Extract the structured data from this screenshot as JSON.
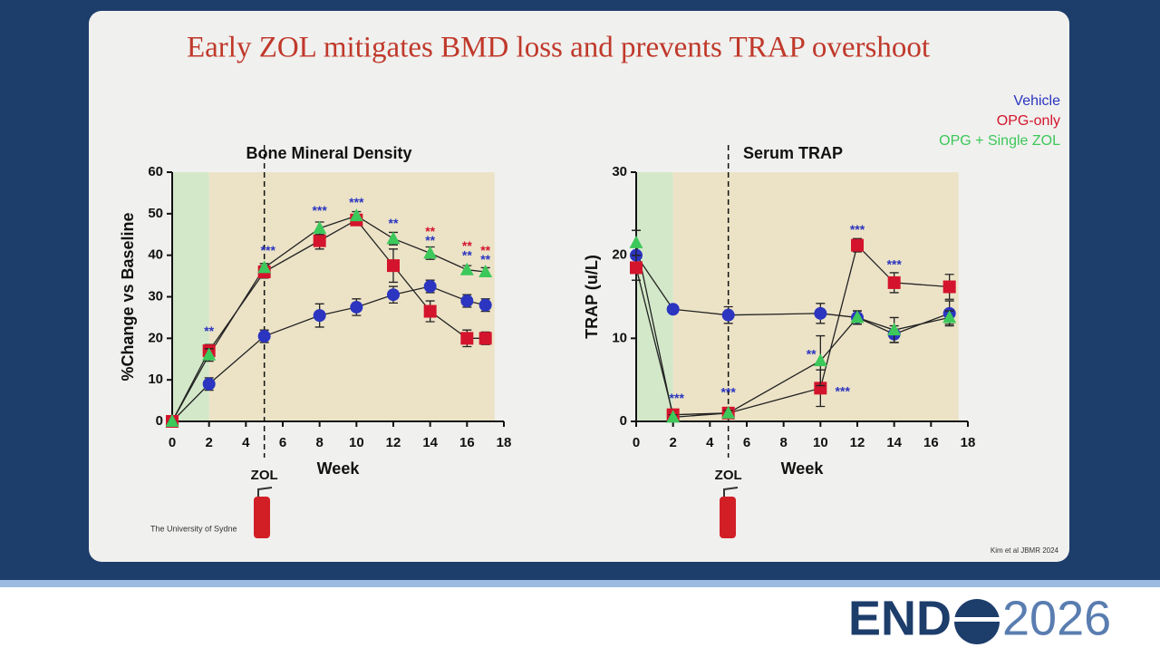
{
  "slide": {
    "title": "Early ZOL mitigates BMD loss and prevents TRAP overshoot",
    "affiliation": "The University of Sydne",
    "source": "Kim et al JBMR 2024",
    "logo_left": "END",
    "logo_right": "2026"
  },
  "chart_data": [
    {
      "type": "line",
      "title": "Bone Mineral Density",
      "x_label": "Week",
      "y_label": "%Change vs Baseline",
      "x": [
        0,
        2,
        5,
        8,
        10,
        12,
        14,
        16,
        17
      ],
      "xlim": [
        0,
        18
      ],
      "xticks": [
        0,
        2,
        4,
        6,
        8,
        10,
        12,
        14,
        16,
        18
      ],
      "ylim": [
        0,
        60
      ],
      "yticks": [
        0,
        10,
        20,
        30,
        40,
        50,
        60
      ],
      "shaded_regions": [
        {
          "x": [
            0,
            2
          ],
          "color": "#d3e8c9"
        },
        {
          "x": [
            2,
            17.5
          ],
          "color": "#ece3c7"
        }
      ],
      "marker_line": {
        "x": 5,
        "label": "ZOL"
      },
      "series": [
        {
          "name": "Vehicle",
          "color": "#2b35c0",
          "marker": "circle",
          "values": [
            0,
            9,
            20.5,
            25.5,
            27.5,
            30.5,
            32.5,
            29,
            28
          ],
          "errors": [
            0,
            1.5,
            1.5,
            2.8,
            2,
            2,
            1.5,
            1.5,
            1.5
          ]
        },
        {
          "name": "OPG-only",
          "color": "#d4142c",
          "marker": "square",
          "values": [
            0,
            17,
            36,
            43.5,
            48.5,
            37.5,
            26.5,
            20,
            20
          ],
          "errors": [
            0,
            1.5,
            1.5,
            2,
            1,
            4,
            2.5,
            2,
            1.5
          ]
        },
        {
          "name": "OPG + Single ZOL",
          "color": "#3cc85a",
          "marker": "triangle",
          "values": [
            0,
            16,
            37,
            46.5,
            49.5,
            44,
            40.5,
            36.5,
            36
          ],
          "errors": [
            0,
            1.5,
            1,
            1.5,
            1,
            1.5,
            1.5,
            1,
            1
          ]
        }
      ],
      "annotations": [
        {
          "text": "**",
          "x": 2,
          "y": 21.5,
          "color": "#2b35c0"
        },
        {
          "text": "***",
          "x": 5.2,
          "y": 41,
          "color": "#2b35c0"
        },
        {
          "text": "***",
          "x": 8,
          "y": 50.5,
          "color": "#2b35c0"
        },
        {
          "text": "***",
          "x": 10,
          "y": 52.5,
          "color": "#2b35c0"
        },
        {
          "text": "**",
          "x": 12,
          "y": 47.5,
          "color": "#2b35c0"
        },
        {
          "text": "**",
          "x": 14,
          "y": 45.5,
          "color": "#d4142c"
        },
        {
          "text": "**",
          "x": 14,
          "y": 43.3,
          "color": "#2b35c0"
        },
        {
          "text": "**",
          "x": 16,
          "y": 42,
          "color": "#d4142c"
        },
        {
          "text": "**",
          "x": 16,
          "y": 39.8,
          "color": "#2b35c0"
        },
        {
          "text": "**",
          "x": 17,
          "y": 41,
          "color": "#d4142c"
        },
        {
          "text": "**",
          "x": 17,
          "y": 38.8,
          "color": "#2b35c0"
        }
      ]
    },
    {
      "type": "line",
      "title": "Serum TRAP",
      "x_label": "Week",
      "y_label": "TRAP (u/L)",
      "x": [
        0,
        2,
        5,
        10,
        12,
        14,
        17
      ],
      "xlim": [
        0,
        18
      ],
      "xticks": [
        0,
        2,
        4,
        6,
        8,
        10,
        12,
        14,
        16,
        18
      ],
      "ylim": [
        0,
        30
      ],
      "yticks": [
        0,
        10,
        20,
        30
      ],
      "shaded_regions": [
        {
          "x": [
            0,
            2
          ],
          "color": "#d3e8c9"
        },
        {
          "x": [
            2,
            17.5
          ],
          "color": "#ece3c7"
        }
      ],
      "marker_line": {
        "x": 5,
        "label": "ZOL"
      },
      "series": [
        {
          "name": "Vehicle",
          "color": "#2b35c0",
          "marker": "circle",
          "values": [
            20,
            13.5,
            12.8,
            13,
            12.5,
            10.5,
            13
          ],
          "errors": [
            3,
            0.3,
            1,
            1.2,
            0.8,
            1,
            1.5
          ]
        },
        {
          "name": "OPG-only",
          "color": "#d4142c",
          "marker": "square",
          "values": [
            18.5,
            0.8,
            1,
            4,
            21.2,
            16.7,
            16.2
          ],
          "errors": [
            1.5,
            0.5,
            0.5,
            2.2,
            0.8,
            1.2,
            1.5
          ]
        },
        {
          "name": "OPG + Single ZOL",
          "color": "#3cc85a",
          "marker": "triangle",
          "values": [
            21.5,
            0.5,
            1,
            7.3,
            12.5,
            11,
            12.5
          ],
          "errors": [
            1.5,
            0.3,
            0.3,
            3,
            0.8,
            1.5,
            0.8
          ]
        }
      ],
      "annotations": [
        {
          "text": "***",
          "x": 2.2,
          "y": 2.7,
          "color": "#2b35c0"
        },
        {
          "text": "***",
          "x": 5,
          "y": 3.4,
          "color": "#2b35c0"
        },
        {
          "text": "**",
          "x": 9.5,
          "y": 8,
          "color": "#2b35c0"
        },
        {
          "text": "***",
          "x": 11.2,
          "y": 3.5,
          "color": "#2b35c0"
        },
        {
          "text": "***",
          "x": 12,
          "y": 23,
          "color": "#2b35c0"
        },
        {
          "text": "***",
          "x": 14,
          "y": 18.8,
          "color": "#2b35c0"
        }
      ]
    }
  ]
}
